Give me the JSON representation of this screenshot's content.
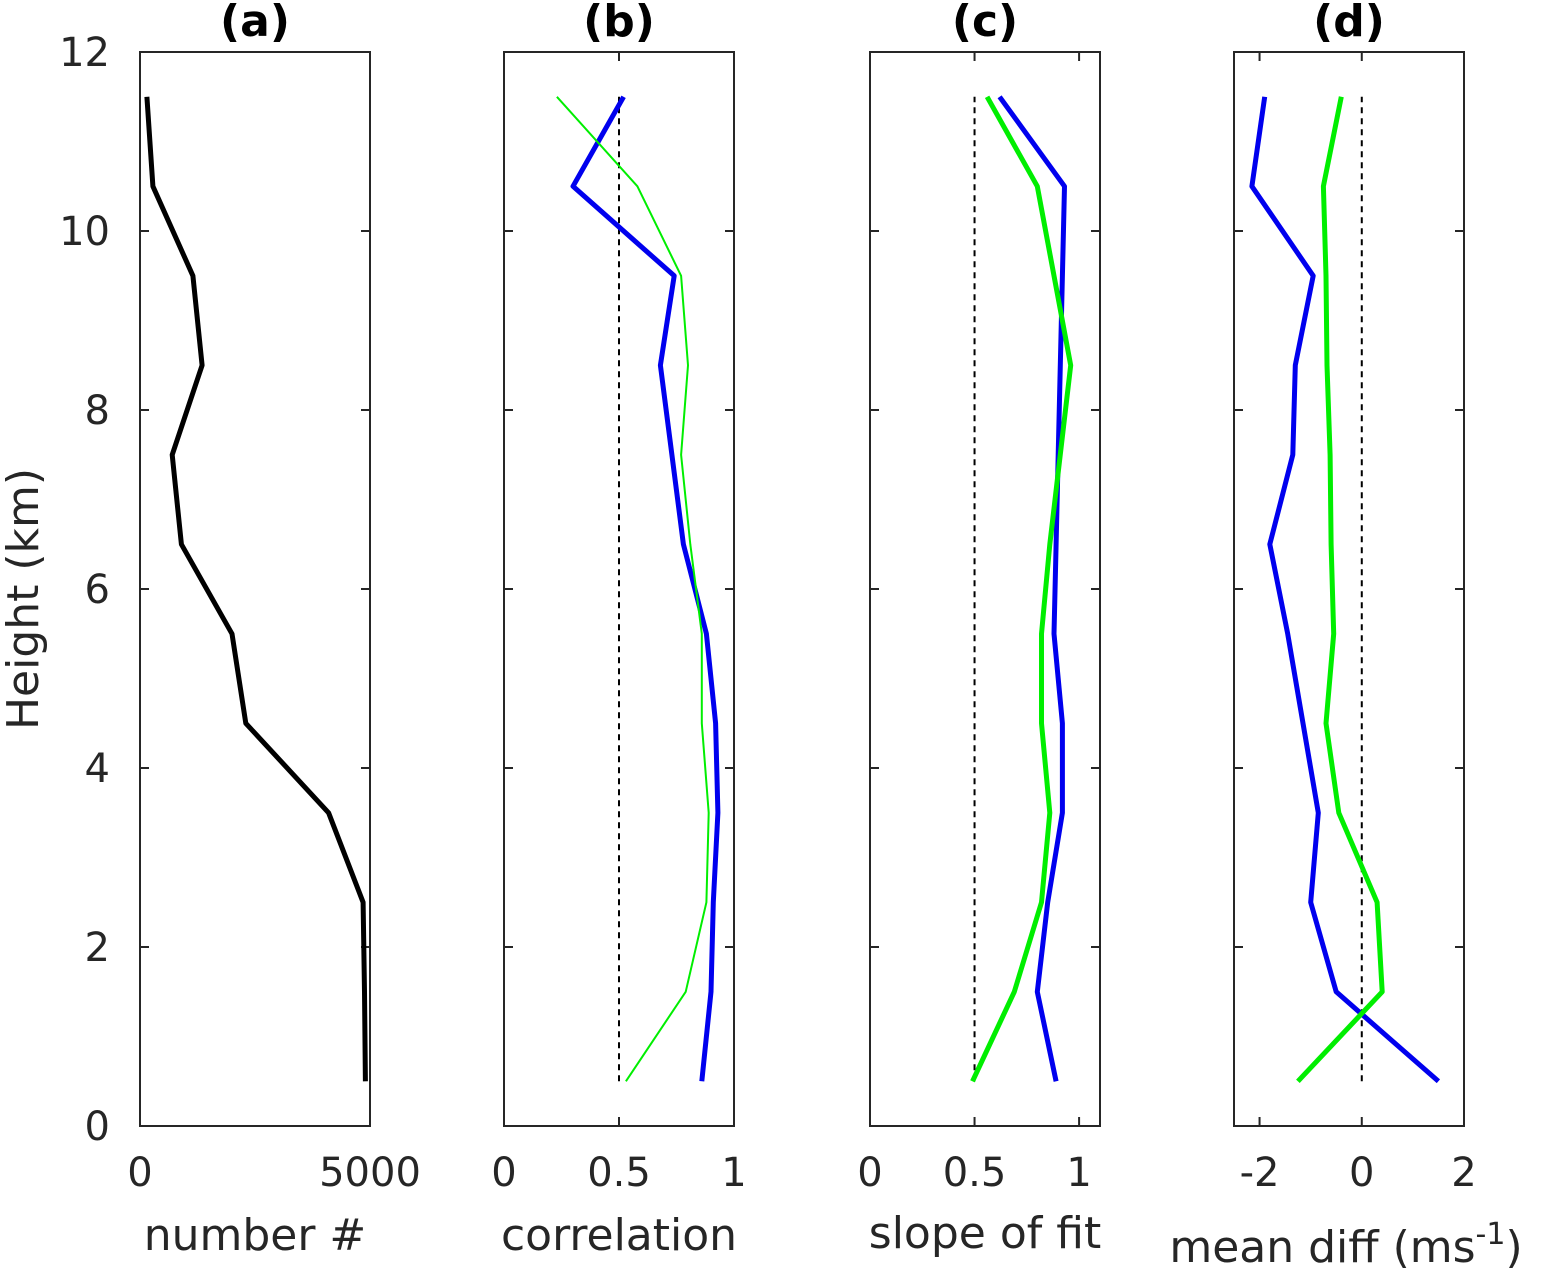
{
  "chart_data": [
    {
      "type": "line",
      "title": "(a)",
      "xlabel": "number #",
      "ylabel": "Height (km)",
      "xlim": [
        0,
        5000
      ],
      "ylim": [
        0,
        12
      ],
      "xticks": [
        0,
        5000
      ],
      "xtick_labels": [
        "0",
        "5000"
      ],
      "yticks": [
        0,
        2,
        4,
        6,
        8,
        10,
        12
      ],
      "ytick_labels": [
        "0",
        "2",
        "4",
        "6",
        "8",
        "10",
        "12"
      ],
      "series": [
        {
          "color": "#000000",
          "width": 5,
          "x": [
            4900,
            4880,
            4850,
            4100,
            2300,
            2000,
            900,
            700,
            1350,
            1150,
            280,
            150
          ],
          "y": [
            0.5,
            1.5,
            2.5,
            3.5,
            4.5,
            5.5,
            6.5,
            7.5,
            8.5,
            9.5,
            10.5,
            11.5
          ]
        }
      ],
      "reference_lines": []
    },
    {
      "type": "line",
      "title": "(b)",
      "xlabel": "correlation",
      "ylabel": "",
      "xlim": [
        0,
        1
      ],
      "ylim": [
        0,
        12
      ],
      "xticks": [
        0,
        0.5,
        1
      ],
      "xtick_labels": [
        "0",
        "0.5",
        "1"
      ],
      "yticks": [
        0,
        2,
        4,
        6,
        8,
        10,
        12
      ],
      "ytick_labels": [],
      "series": [
        {
          "color": "#0000ee",
          "width": 5,
          "x": [
            0.86,
            0.9,
            0.91,
            0.93,
            0.92,
            0.88,
            0.78,
            0.68,
            0.74,
            0.3,
            0.52
          ],
          "y": [
            0.5,
            1.5,
            2.5,
            3.5,
            4.5,
            5.5,
            6.5,
            8.5,
            9.5,
            10.5,
            11.5
          ]
        },
        {
          "color": "#00ee00",
          "width": 2,
          "x": [
            0.53,
            0.79,
            0.88,
            0.89,
            0.86,
            0.86,
            0.81,
            0.77,
            0.8,
            0.77,
            0.58,
            0.23
          ],
          "y": [
            0.5,
            1.5,
            2.5,
            3.5,
            4.5,
            5.5,
            6.5,
            7.5,
            8.5,
            9.5,
            10.5,
            11.5
          ]
        }
      ],
      "reference_lines": [
        {
          "x": 0.5,
          "style": "dashed",
          "color": "#000000"
        }
      ]
    },
    {
      "type": "line",
      "title": "(c)",
      "xlabel": "slope of fit",
      "ylabel": "",
      "xlim": [
        0,
        1.1
      ],
      "ylim": [
        0,
        12
      ],
      "xticks": [
        0,
        0.5,
        1
      ],
      "xtick_labels": [
        "0",
        "0.5",
        "1"
      ],
      "yticks": [
        0,
        2,
        4,
        6,
        8,
        10,
        12
      ],
      "ytick_labels": [],
      "series": [
        {
          "color": "#0000ee",
          "width": 5,
          "x": [
            0.89,
            0.8,
            0.85,
            0.92,
            0.92,
            0.88,
            0.89,
            0.9,
            0.91,
            0.93,
            0.62
          ],
          "y": [
            0.5,
            1.5,
            2.5,
            3.5,
            4.5,
            5.5,
            6.5,
            7.5,
            8.5,
            10.5,
            11.5
          ]
        },
        {
          "color": "#00ee00",
          "width": 5,
          "x": [
            0.49,
            0.69,
            0.82,
            0.86,
            0.82,
            0.82,
            0.86,
            0.96,
            0.8,
            0.56
          ],
          "y": [
            0.5,
            1.5,
            2.5,
            3.5,
            4.5,
            5.5,
            6.5,
            8.5,
            10.5,
            11.5
          ]
        }
      ],
      "reference_lines": [
        {
          "x": 0.5,
          "style": "dashed",
          "color": "#000000"
        }
      ]
    },
    {
      "type": "line",
      "title": "(d)",
      "xlabel_main": "mean diff (ms",
      "xlabel_sup": "-1",
      "xlabel_end": ")",
      "ylabel": "",
      "xlim": [
        -2.5,
        2
      ],
      "ylim": [
        0,
        12
      ],
      "xticks": [
        -2,
        0,
        2
      ],
      "xtick_labels": [
        "-2",
        "0",
        "2"
      ],
      "yticks": [
        0,
        2,
        4,
        6,
        8,
        10,
        12
      ],
      "ytick_labels": [],
      "series": [
        {
          "color": "#0000ee",
          "width": 5,
          "x": [
            1.5,
            -0.5,
            -1.0,
            -0.85,
            -1.15,
            -1.45,
            -1.8,
            -1.35,
            -1.3,
            -0.95,
            -2.15,
            -1.9
          ],
          "y": [
            0.5,
            1.5,
            2.5,
            3.5,
            4.5,
            5.5,
            6.5,
            7.5,
            8.5,
            9.5,
            10.5,
            11.5
          ]
        },
        {
          "color": "#00ee00",
          "width": 5,
          "x": [
            -1.25,
            0.4,
            0.3,
            -0.45,
            -0.7,
            -0.55,
            -0.6,
            -0.62,
            -0.68,
            -0.7,
            -0.75,
            -0.4
          ],
          "y": [
            0.5,
            1.5,
            2.5,
            3.5,
            4.5,
            5.5,
            6.5,
            7.5,
            8.5,
            9.5,
            10.5,
            11.5
          ]
        }
      ],
      "reference_lines": [
        {
          "x": 0,
          "style": "dashed",
          "color": "#000000"
        }
      ]
    }
  ]
}
